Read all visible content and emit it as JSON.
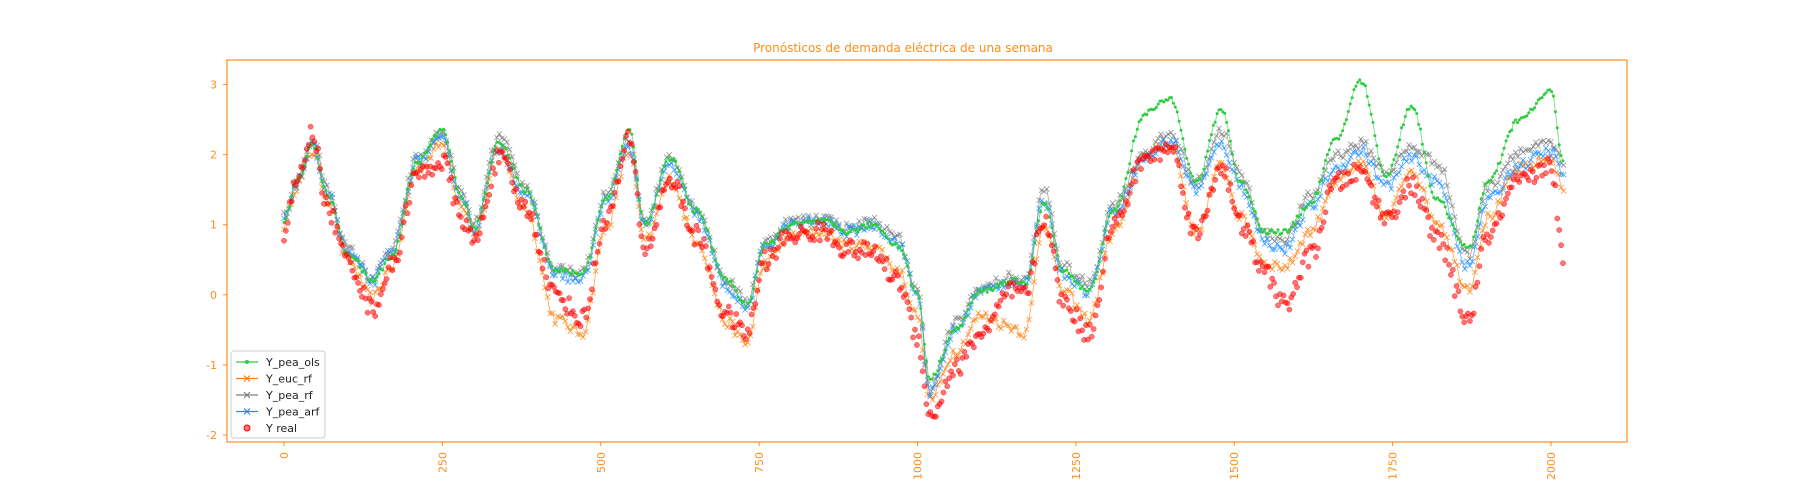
{
  "chart_data": {
    "type": "line",
    "title": "Pronósticos de demanda eléctrica de una semana",
    "xlabel": "",
    "ylabel": "",
    "xlim": [
      -90,
      2120
    ],
    "ylim": [
      -2.1,
      3.35
    ],
    "xticks": [
      0,
      250,
      500,
      750,
      1000,
      1250,
      1500,
      1750,
      2000
    ],
    "yticks": [
      -2,
      -1,
      0,
      1,
      2,
      3
    ],
    "grid": false,
    "legend_position": "lower-left",
    "axis_color": "#ff8c1a",
    "x_anchor": [
      0,
      20,
      45,
      70,
      100,
      140,
      170,
      210,
      250,
      280,
      300,
      340,
      380,
      430,
      470,
      510,
      545,
      570,
      610,
      650,
      700,
      730,
      760,
      800,
      850,
      890,
      930,
      970,
      1000,
      1020,
      1060,
      1100,
      1150,
      1170,
      1200,
      1230,
      1270,
      1310,
      1360,
      1400,
      1440,
      1480,
      1510,
      1550,
      1580,
      1620,
      1660,
      1700,
      1740,
      1780,
      1820,
      1870,
      1900,
      1950,
      2000,
      2020
    ],
    "series": [
      {
        "name": "Y_pea_ols",
        "color": "#2ecc40",
        "marker": "dot",
        "anchors": [
          1.05,
          1.6,
          2.15,
          1.4,
          0.6,
          0.2,
          0.55,
          1.9,
          2.35,
          1.4,
          0.95,
          2.2,
          1.5,
          0.35,
          0.3,
          1.4,
          2.35,
          1.0,
          1.95,
          1.2,
          0.2,
          -0.15,
          0.7,
          1.0,
          1.05,
          0.9,
          1.0,
          0.7,
          0.0,
          -1.2,
          -0.5,
          0.05,
          0.2,
          0.15,
          1.3,
          0.35,
          0.05,
          1.2,
          2.6,
          2.8,
          1.6,
          2.65,
          1.6,
          0.9,
          0.9,
          1.3,
          2.2,
          3.05,
          1.7,
          2.7,
          1.35,
          0.65,
          1.6,
          2.5,
          2.9,
          1.9
        ]
      },
      {
        "name": "Y_euc_rf",
        "color": "#ff7f0e",
        "marker": "x",
        "anchors": [
          1.0,
          1.55,
          2.05,
          1.35,
          0.5,
          -0.05,
          0.4,
          1.8,
          2.15,
          1.3,
          0.85,
          2.05,
          1.25,
          -0.35,
          -0.55,
          1.0,
          2.05,
          0.75,
          1.65,
          0.8,
          -0.4,
          -0.7,
          0.45,
          0.85,
          0.9,
          0.7,
          0.7,
          0.35,
          -0.3,
          -1.5,
          -0.8,
          -0.3,
          -0.45,
          -0.55,
          1.05,
          0.05,
          -0.35,
          0.9,
          2.0,
          2.15,
          0.9,
          1.85,
          1.1,
          0.45,
          0.4,
          0.9,
          1.6,
          1.85,
          1.1,
          1.8,
          1.05,
          0.1,
          1.1,
          1.8,
          1.95,
          1.5
        ]
      },
      {
        "name": "Y_pea_rf",
        "color": "#808080",
        "marker": "x",
        "anchors": [
          1.1,
          1.65,
          2.2,
          1.5,
          0.65,
          0.25,
          0.65,
          1.95,
          2.3,
          1.45,
          1.0,
          2.25,
          1.55,
          0.35,
          0.3,
          1.45,
          2.2,
          1.05,
          2.0,
          1.25,
          0.2,
          -0.1,
          0.75,
          1.05,
          1.1,
          0.95,
          1.05,
          0.8,
          0.05,
          -1.35,
          -0.4,
          0.1,
          0.25,
          0.2,
          1.5,
          0.4,
          0.15,
          1.3,
          2.05,
          2.3,
          1.6,
          2.35,
          1.7,
          0.85,
          0.8,
          1.4,
          2.0,
          2.15,
          1.75,
          2.1,
          1.9,
          0.55,
          1.55,
          2.05,
          2.15,
          1.85
        ]
      },
      {
        "name": "Y_pea_arf",
        "color": "#1f8fff",
        "marker": "x",
        "anchors": [
          1.05,
          1.6,
          2.1,
          1.45,
          0.6,
          0.2,
          0.6,
          1.9,
          2.2,
          1.4,
          0.95,
          2.1,
          1.45,
          0.3,
          0.2,
          1.35,
          2.1,
          1.0,
          1.85,
          1.15,
          0.1,
          -0.2,
          0.7,
          1.0,
          1.05,
          0.9,
          1.0,
          0.75,
          0.0,
          -1.4,
          -0.5,
          0.05,
          0.2,
          0.15,
          1.35,
          0.3,
          0.05,
          1.2,
          1.95,
          2.2,
          1.5,
          2.15,
          1.55,
          0.75,
          0.65,
          1.25,
          1.8,
          2.05,
          1.55,
          1.95,
          1.6,
          0.4,
          1.35,
          1.85,
          2.05,
          1.7
        ]
      },
      {
        "name": "Y real",
        "color": "#ff0000",
        "marker": "circle",
        "anchors": [
          0.9,
          1.6,
          2.3,
          1.2,
          0.5,
          -0.2,
          0.4,
          1.7,
          1.9,
          1.1,
          0.75,
          1.95,
          1.25,
          0.0,
          -0.35,
          1.1,
          2.2,
          0.65,
          1.65,
          0.85,
          -0.3,
          -0.55,
          0.5,
          0.85,
          0.9,
          0.65,
          0.6,
          0.2,
          -0.6,
          -1.75,
          -1.05,
          -0.55,
          0.05,
          0.0,
          1.1,
          -0.1,
          -0.55,
          1.0,
          1.95,
          2.1,
          0.85,
          1.85,
          1.0,
          0.3,
          -0.15,
          0.55,
          1.6,
          1.75,
          1.1,
          1.55,
          0.8,
          -0.35,
          0.85,
          1.6,
          1.85,
          0.45
        ]
      }
    ]
  }
}
